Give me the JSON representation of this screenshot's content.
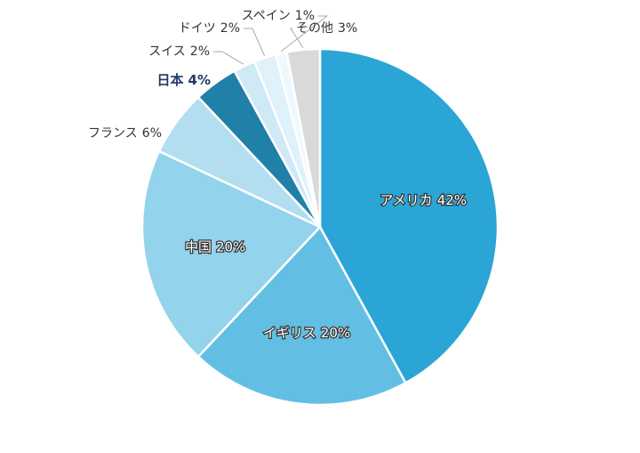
{
  "chart_data": {
    "type": "pie",
    "categories": [
      "アメリカ",
      "イギリス",
      "中国",
      "フランス",
      "日本",
      "スイス",
      "ドイツ",
      "スペイン",
      "その他"
    ],
    "values": [
      42,
      20,
      20,
      6,
      4,
      2,
      2,
      1,
      3
    ],
    "value_labels": [
      "42%",
      "20%",
      "20%",
      "6%",
      "4%",
      "2%",
      "2%",
      "1%",
      "3%"
    ],
    "colors": [
      "#2aa5d5",
      "#62bfe3",
      "#93d3eb",
      "#b2def0",
      "#2080a8",
      "#cfe9f6",
      "#dff1fa",
      "#eef8fd",
      "#d9d9d9"
    ]
  }
}
